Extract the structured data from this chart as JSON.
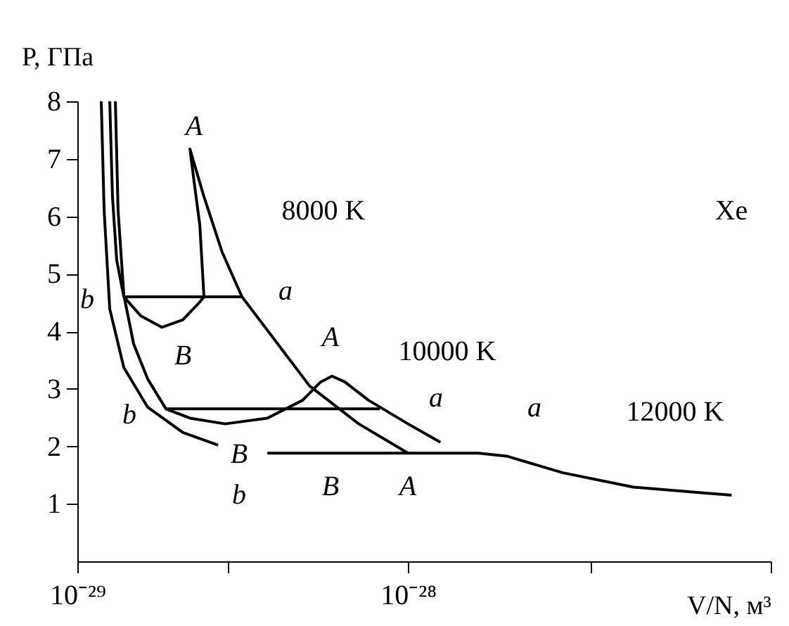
{
  "chart_data": {
    "type": "line",
    "xlabel": "V/N, м³",
    "ylabel": "P, ГПа",
    "log": "x",
    "grid": false,
    "legend": false,
    "marker": "none",
    "line_style": "solid",
    "xlim": [
      1e-29,
      1.25e-27
    ],
    "ylim": [
      0,
      8
    ],
    "xticks": [
      {
        "value": 1e-29,
        "label": "10⁻²⁹"
      },
      {
        "value": 2.85e-29,
        "label": null
      },
      {
        "value": 1e-28,
        "label": "10⁻²⁸"
      },
      {
        "value": 3.57e-28,
        "label": null
      },
      {
        "value": 1.25e-27,
        "label": null
      }
    ],
    "yticks": [
      1,
      2,
      3,
      4,
      5,
      6,
      7,
      8
    ],
    "series": [
      {
        "color": "#000000",
        "x": [
          1.253e-29,
          1.277e-29,
          1.315e-29,
          1.382e-29,
          1.554e-29,
          1.8e-29,
          2.085e-29,
          2.346e-29,
          2.415e-29,
          2.346e-29,
          2.256e-29,
          2.19e-29,
          2.415e-29,
          2.744e-29,
          3.147e-29,
          3.754e-29,
          5.037e-29,
          7.098e-29,
          1e-28
        ],
        "values": [
          8,
          6.34,
          5.24,
          4.6,
          4.27,
          4.07,
          4.2,
          4.51,
          4.6,
          5.85,
          6.59,
          7.17,
          6.34,
          5.37,
          4.6,
          4.02,
          3.05,
          2.39,
          1.88
        ]
      },
      {
        "color": "#000000",
        "x": [
          1.382e-29,
          3.147e-29
        ],
        "values": [
          4.6,
          4.6
        ]
      },
      {
        "color": "#000000",
        "x": [
          1.303e-29,
          1.328e-29,
          1.382e-29,
          1.48e-29,
          1.632e-29,
          1.854e-29,
          2.19e-29,
          2.798e-29,
          3.754e-29,
          4.797e-29,
          5.447e-29,
          5.891e-29,
          6.436e-29,
          7.602e-29,
          1e-28,
          1.253e-28
        ],
        "values": [
          8,
          6.1,
          4.63,
          3.78,
          3.17,
          2.65,
          2.49,
          2.39,
          2.49,
          2.8,
          3.12,
          3.22,
          3.12,
          2.8,
          2.39,
          2.07
        ]
      },
      {
        "color": "#000000",
        "x": [
          1.854e-29,
          8.22e-29
        ],
        "values": [
          2.65,
          2.65
        ]
      },
      {
        "color": "#000000",
        "x": [
          1.181e-29,
          1.205e-29,
          1.253e-29,
          1.382e-29,
          1.632e-29,
          2.085e-29,
          2.665e-29
        ],
        "values": [
          8,
          6.1,
          4.39,
          3.37,
          2.68,
          2.24,
          2.02
        ]
      },
      {
        "color": "#000000",
        "x": [
          3.754e-29,
          1e-28,
          1.632e-28,
          1.986e-28,
          2.938e-28,
          4.797e-28,
          9.52e-28
        ],
        "values": [
          1.88,
          1.88,
          1.88,
          1.83,
          1.54,
          1.29,
          1.15
        ]
      }
    ],
    "annotations": [
      "A",
      "8000 K",
      "a",
      "b",
      "B",
      "A",
      "10000 K",
      "a",
      "b",
      "B",
      "b",
      "B",
      "A",
      "a",
      "12000 K",
      "Xe"
    ]
  }
}
